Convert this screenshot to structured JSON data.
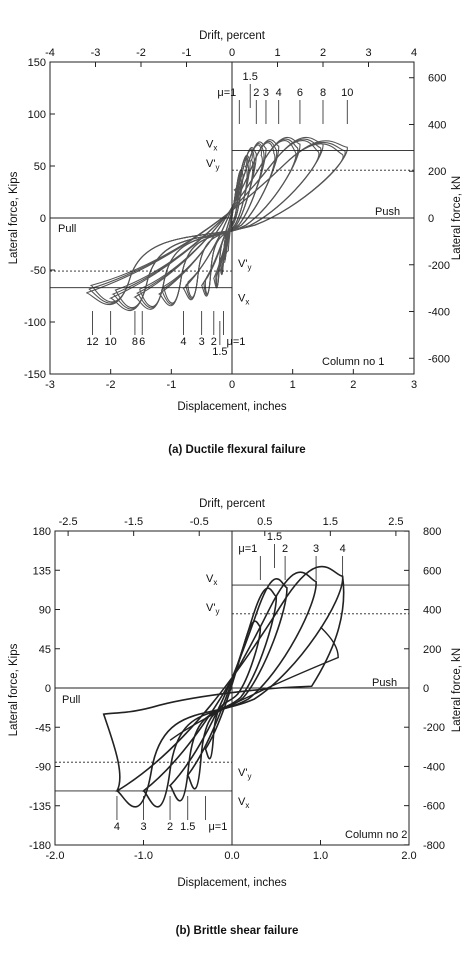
{
  "chart_data": [
    {
      "type": "line",
      "caption": "(a) Ductile flexural failure",
      "top_axis_label": "Drift, percent",
      "top_ticks": [
        "-4",
        "-3",
        "-2",
        "-1",
        "0",
        "1",
        "2",
        "3",
        "4"
      ],
      "xlabel": "Displacement, inches",
      "x_ticks": [
        "-3",
        "-2",
        "-1",
        "0",
        "1",
        "2",
        "3"
      ],
      "xlim": [
        -3,
        3
      ],
      "ylabel": "Lateral force, Kips",
      "y_ticks": [
        "150",
        "100",
        "50",
        "0",
        "-50",
        "-100",
        "-150"
      ],
      "ylim": [
        -150,
        150
      ],
      "right_label": "Lateral force, kN",
      "right_ticks": [
        "600",
        "400",
        "200",
        "0",
        "-200",
        "-400",
        "-600"
      ],
      "push_label": "Push",
      "pull_label": "Pull",
      "panel_label": "Column no 1",
      "levels": [
        {
          "label": "Vx",
          "value": 65
        },
        {
          "label": "V'y",
          "value": 46
        },
        {
          "label": "V'y",
          "value": -51
        },
        {
          "label": "Vx",
          "value": -67
        }
      ],
      "mu_push": {
        "first": "μ=1",
        "labels": [
          "1.5",
          "2",
          "3",
          "4",
          "6",
          "8",
          "10"
        ],
        "x": [
          0.12,
          0.3,
          0.4,
          0.56,
          0.77,
          1.12,
          1.5,
          1.9
        ]
      },
      "mu_pull": {
        "first": "μ=1",
        "labels": [
          "1.5",
          "2",
          "3",
          "4",
          "6",
          "8",
          "10",
          "12"
        ],
        "x": [
          -0.14,
          -0.2,
          -0.3,
          -0.5,
          -0.8,
          -1.48,
          -1.6,
          -2.0,
          -2.3
        ]
      },
      "cycle_peaks_push": [
        [
          0.12,
          30
        ],
        [
          0.18,
          42
        ],
        [
          0.3,
          55
        ],
        [
          0.4,
          62
        ],
        [
          0.56,
          67
        ],
        [
          0.77,
          69
        ],
        [
          1.12,
          71
        ],
        [
          1.5,
          71
        ],
        [
          1.9,
          68
        ]
      ],
      "cycle_peaks_pull": [
        [
          -0.14,
          -35
        ],
        [
          -0.2,
          -47
        ],
        [
          -0.3,
          -58
        ],
        [
          -0.5,
          -65
        ],
        [
          -0.8,
          -68
        ],
        [
          -1.2,
          -73
        ],
        [
          -1.6,
          -76
        ],
        [
          -2.0,
          -77
        ],
        [
          -2.4,
          -72
        ]
      ]
    },
    {
      "type": "line",
      "caption": "(b) Brittle shear failure",
      "top_axis_label": "Drift, percent",
      "top_ticks": [
        "-2.5",
        "-1.5",
        "-0.5",
        "0.5",
        "1.5",
        "2.5"
      ],
      "xlabel": "Displacement, inches",
      "x_ticks": [
        "-2.0",
        "-1.0",
        "0.0",
        "1.0",
        "2.0"
      ],
      "xlim": [
        -2,
        2
      ],
      "ylabel": "Lateral force, Kips",
      "y_ticks": [
        "180",
        "135",
        "90",
        "45",
        "0",
        "-45",
        "-90",
        "-135",
        "-180"
      ],
      "ylim": [
        -180,
        180
      ],
      "right_label": "Lateral force, kN",
      "right_ticks": [
        "800",
        "600",
        "400",
        "200",
        "0",
        "-200",
        "-400",
        "-600",
        "-800"
      ],
      "push_label": "Push",
      "pull_label": "Pull",
      "panel_label": "Column no 2",
      "levels": [
        {
          "label": "Vx",
          "value": 118
        },
        {
          "label": "V'y",
          "value": 85
        },
        {
          "label": "V'y",
          "value": -85
        },
        {
          "label": "Vx",
          "value": -118
        }
      ],
      "mu_push": {
        "first": "μ=1",
        "labels": [
          "1.5",
          "2",
          "3",
          "4"
        ],
        "x": [
          0.32,
          0.48,
          0.6,
          0.95,
          1.25
        ]
      },
      "mu_pull": {
        "first": "μ=1",
        "labels": [
          "1.5",
          "2",
          "3",
          "4"
        ],
        "x": [
          -0.3,
          -0.5,
          -0.7,
          -1.0,
          -1.3
        ]
      },
      "cycle_peaks_push": [
        [
          0.32,
          70
        ],
        [
          0.5,
          105
        ],
        [
          0.62,
          115
        ],
        [
          0.95,
          122
        ],
        [
          1.25,
          128
        ]
      ],
      "cycle_peaks_pull": [
        [
          -0.3,
          -70
        ],
        [
          -0.5,
          -100
        ],
        [
          -0.7,
          -112
        ],
        [
          -1.0,
          -118
        ],
        [
          -1.3,
          -118
        ]
      ]
    }
  ]
}
